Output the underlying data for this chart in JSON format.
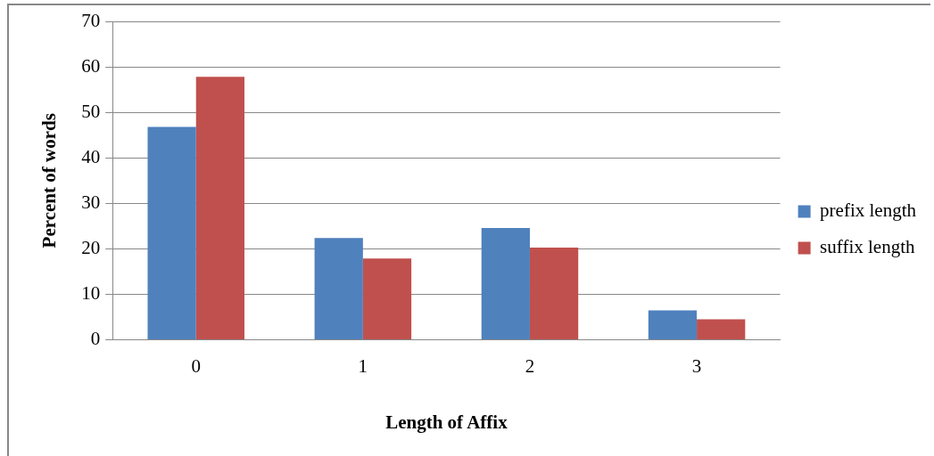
{
  "chart_data": {
    "type": "bar",
    "xlabel": "Length of Affix",
    "ylabel": "Percent of words",
    "categories": [
      "0",
      "1",
      "2",
      "3"
    ],
    "series": [
      {
        "name": "prefix length",
        "color": "#4f81bd",
        "values": [
          46.8,
          22.4,
          24.6,
          6.5
        ]
      },
      {
        "name": "suffix length",
        "color": "#c0504d",
        "values": [
          57.8,
          17.9,
          20.3,
          4.5
        ]
      }
    ],
    "ylim": [
      0,
      70
    ],
    "yticks": [
      0,
      10,
      20,
      30,
      40,
      50,
      60,
      70
    ],
    "grid": "y",
    "legend": "right"
  }
}
